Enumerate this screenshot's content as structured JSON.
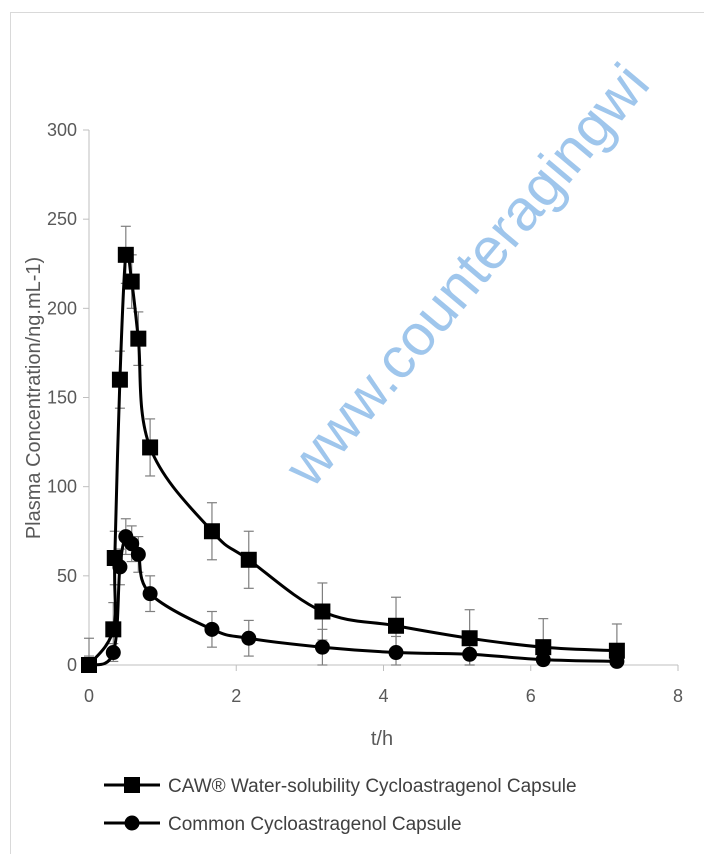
{
  "watermark": "www.counteragingwi",
  "chart_data": {
    "type": "line",
    "xlabel": "t/h",
    "ylabel": "Plasma Concentration/ng.mL-1)",
    "xlim": [
      0,
      8
    ],
    "ylim": [
      0,
      300
    ],
    "xticks": [
      0,
      2,
      4,
      6,
      8
    ],
    "yticks": [
      0,
      50,
      100,
      150,
      200,
      250,
      300
    ],
    "grid": false,
    "legend_position": "bottom",
    "line_color": "#000000",
    "error_bar_color": "#7f7f7f",
    "series": [
      {
        "name": "CAW® Water-solubility Cycloastragenol Capsule",
        "marker": "square",
        "x": [
          0,
          0.33,
          0.35,
          0.42,
          0.5,
          0.58,
          0.67,
          0.83,
          1.67,
          2.17,
          3.17,
          4.17,
          5.17,
          6.17,
          7.17
        ],
        "y": [
          0,
          20,
          60,
          160,
          230,
          215,
          183,
          122,
          75,
          59,
          30,
          22,
          15,
          10,
          8
        ],
        "error": [
          15,
          15,
          15,
          16,
          16,
          15,
          15,
          16,
          16,
          16,
          16,
          16,
          16,
          16,
          15
        ]
      },
      {
        "name": "Common Cycloastragenol Capsule",
        "marker": "circle",
        "x": [
          0,
          0.33,
          0.42,
          0.5,
          0.58,
          0.67,
          0.83,
          1.67,
          2.17,
          3.17,
          4.17,
          5.17,
          6.17,
          7.17
        ],
        "y": [
          0,
          7,
          55,
          72,
          68,
          62,
          40,
          20,
          15,
          10,
          7,
          6,
          3,
          2
        ],
        "error": [
          5,
          5,
          10,
          10,
          10,
          10,
          10,
          10,
          10,
          10,
          9,
          6,
          4,
          3
        ]
      }
    ]
  }
}
